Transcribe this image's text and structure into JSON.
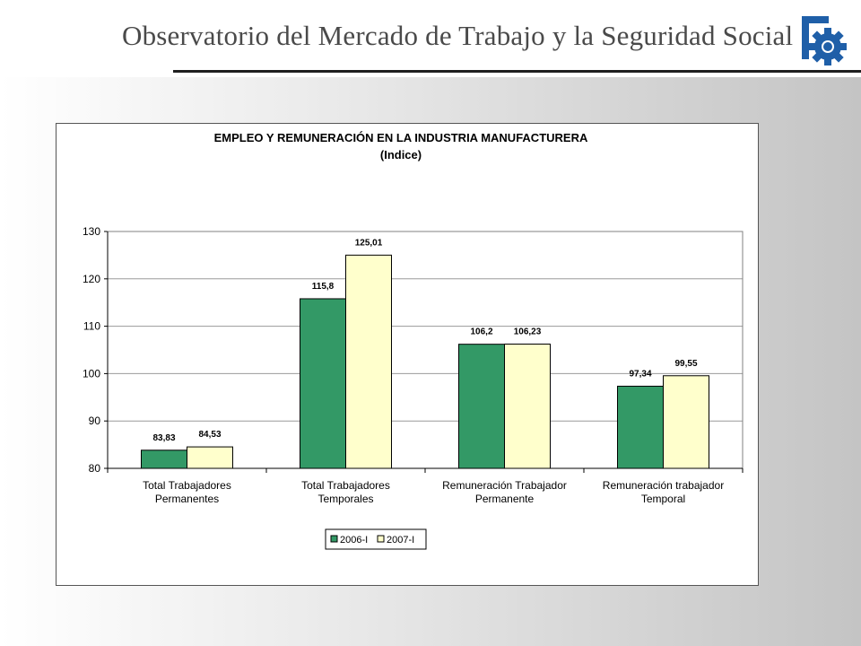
{
  "header": {
    "title": "Observatorio del Mercado de Trabajo y la Seguridad Social",
    "logo_icon": "gear-icon"
  },
  "colors": {
    "series1": "#339966",
    "series2": "#ffffcc",
    "logo_blue": "#1f5fa8"
  },
  "chart_data": {
    "type": "bar",
    "title": "EMPLEO Y REMUNERACIÓN EN LA INDUSTRIA MANUFACTURERA",
    "subtitle": "(Indice)",
    "categories": [
      [
        "Total Trabajadores",
        "Permanentes"
      ],
      [
        "Total Trabajadores",
        "Temporales"
      ],
      [
        "Remuneración Trabajador",
        "Permanente"
      ],
      [
        "Remuneración trabajador",
        "Temporal"
      ]
    ],
    "series": [
      {
        "name": "2006-I",
        "values": [
          83.83,
          115.8,
          106.2,
          97.34
        ],
        "labels": [
          "83,83",
          "115,8",
          "106,2",
          "97,34"
        ]
      },
      {
        "name": "2007-I",
        "values": [
          84.53,
          125.01,
          106.23,
          99.55
        ],
        "labels": [
          "84,53",
          "125,01",
          "106,23",
          "99,55"
        ]
      }
    ],
    "ylim": [
      80,
      130
    ],
    "yticks": [
      80,
      90,
      100,
      110,
      120,
      130
    ],
    "grid": true,
    "legend_position": "bottom"
  }
}
